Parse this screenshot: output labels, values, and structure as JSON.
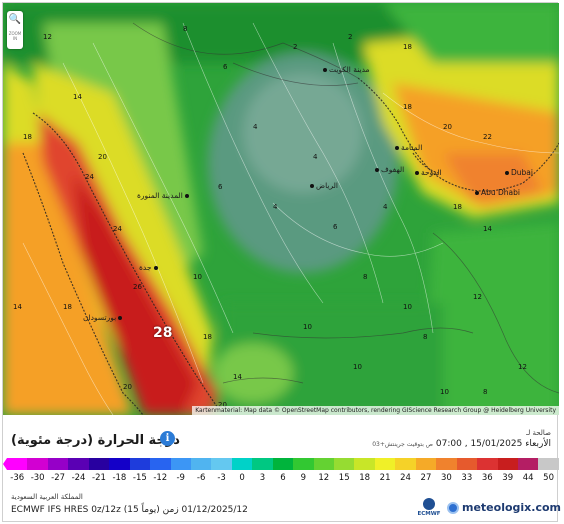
{
  "map": {
    "attribution": "Kartenmaterial: Map data © OpenStreetMap contributors, rendering GIScience Research Group @ Heidelberg University",
    "zoom_button": "🔍",
    "zoom_sub": "ZOOM IN",
    "cities": {
      "kuwait": "مدينة الكويت",
      "riyadh": "الرياض",
      "medina": "المدينة المنورة",
      "jeddah": "جدة",
      "portsudan": "بورتسودان",
      "doha": "الدوحة",
      "dubai": "Dubai",
      "abudhabi": "Abu Dhabi",
      "manama": "المنامة",
      "hofuf": "الهفوف"
    },
    "iso_labels": {
      "big": "28",
      "a": "12",
      "b": "14",
      "c": "18",
      "d": "20",
      "e": "24",
      "f": "18",
      "g": "14",
      "h": "10",
      "i": "8",
      "j": "6",
      "k": "4",
      "l": "2",
      "m": "4",
      "n": "6",
      "o": "8",
      "p": "10",
      "q": "12",
      "r": "16",
      "s": "18",
      "t": "20",
      "u": "22",
      "v": "18",
      "w": "14",
      "x": "20",
      "y": "24",
      "z": "26",
      "aa": "18",
      "ab": "14",
      "ac": "10",
      "ad": "8",
      "ae": "4",
      "af": "2",
      "ag": "6",
      "ah": "4",
      "ai": "10",
      "aj": "12",
      "ak": "18",
      "al": "20",
      "am": "10",
      "an": "8"
    },
    "colors": {
      "magenta": "#ff00ff",
      "deep_green": "#1f8f2f",
      "green": "#3cb43c",
      "light_green": "#78c84a",
      "yellow": "#dcdc28",
      "orange": "#f5a028",
      "red": "#e0452e",
      "dark_red": "#c81e1e",
      "teal": "#5a9a80"
    }
  },
  "info": {
    "title": "درجة الحرارة (درجة مئوية)",
    "info_icon": "i",
    "time_label": "صالحة لـ",
    "valid_time": "الأربعاء 15/01/2025 , 07:00",
    "timezone_note": "ص بتوقيت جرينتش+03"
  },
  "legend": {
    "ticks": [
      "-36",
      "-30",
      "-27",
      "-24",
      "-21",
      "-18",
      "-15",
      "-12",
      "-9",
      "-6",
      "-3",
      "0",
      "3",
      "6",
      "9",
      "12",
      "15",
      "18",
      "21",
      "24",
      "27",
      "30",
      "33",
      "36",
      "39",
      "44",
      "50"
    ],
    "colors": [
      "#ff00ff",
      "#d200d2",
      "#9600c8",
      "#5a00b4",
      "#2800a0",
      "#1400c8",
      "#1e3cdc",
      "#2864f0",
      "#3c96f5",
      "#50b4f0",
      "#64c8f0",
      "#00d2c8",
      "#00c882",
      "#00b43c",
      "#32c832",
      "#64d232",
      "#96dc32",
      "#c8e628",
      "#f0f028",
      "#f5d228",
      "#f5aa28",
      "#f0822d",
      "#e65a2d",
      "#dc3232",
      "#c81e1e",
      "#b41e64",
      "#c8c8c8"
    ]
  },
  "footer": {
    "region": "المملكة العربية السعودية",
    "model": "ECMWF IFS HRES 0z/12z (15 يوماً) 01/12/2025/12 زمن",
    "ecmwf": "ECMWF",
    "brand": "meteologix.com"
  }
}
